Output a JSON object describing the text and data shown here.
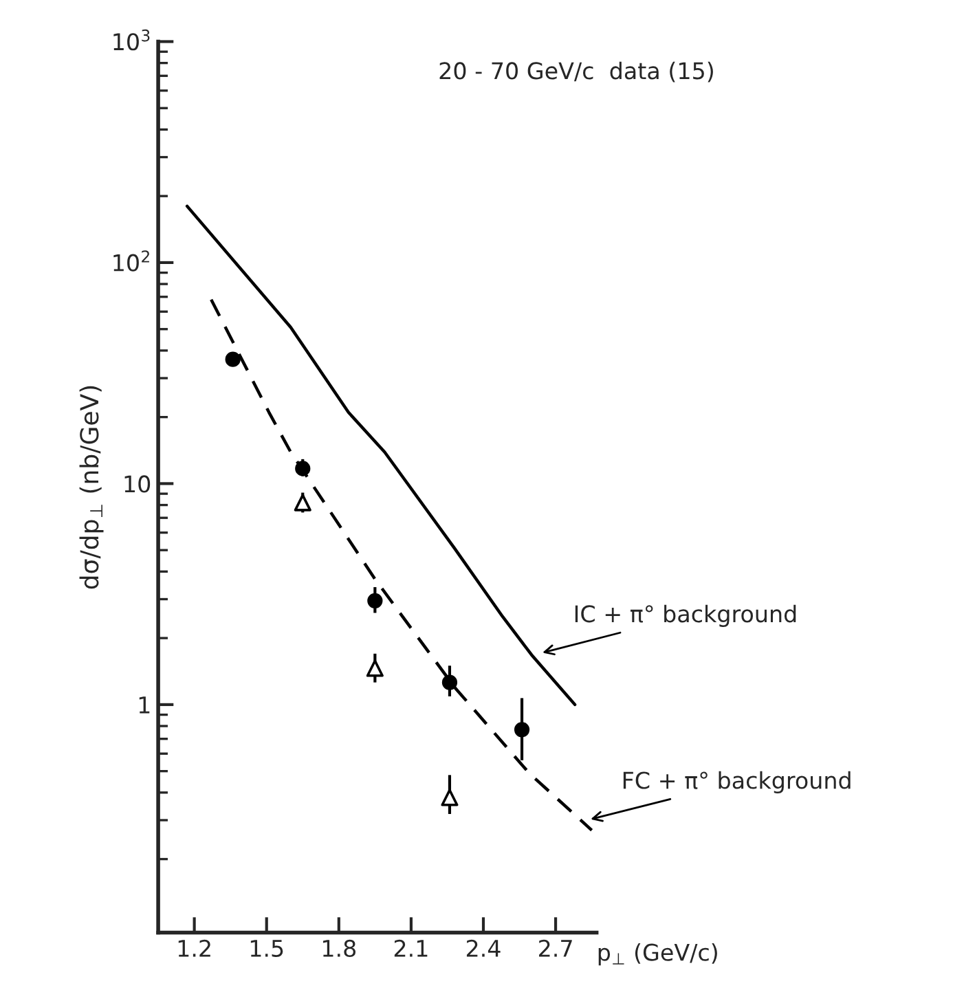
{
  "chart_data": {
    "type": "scatter",
    "ylabel": "dσ/dp$_{⊥}$ (nb/GeV)",
    "xlabel": "p$_{⊥}$ (GeV/c)",
    "log": "y",
    "xlim": [
      1.05,
      2.87
    ],
    "xticks": [
      1.2,
      1.5,
      1.8,
      2.1,
      2.4,
      2.7
    ],
    "ylim": [
      0.093,
      1000
    ],
    "yticks": [
      {
        "value": 1,
        "label": "1"
      },
      {
        "value": 10,
        "label": "10"
      },
      {
        "value": 100,
        "label": "10$^{2}$"
      },
      {
        "value": 1000,
        "label": "10$^{3}$"
      }
    ],
    "grid": false,
    "legend": false,
    "annotations": [
      "20 - 70 GeV/c  data (15)",
      {
        "text": "IC + π° background",
        "x": 2.63,
        "y": 1.7
      },
      {
        "text": "FC + π° background",
        "x": 2.83,
        "y": 0.3
      }
    ],
    "series": [
      {
        "type": "line",
        "line_style": "solid",
        "color": "#000000",
        "x": [
          1.17,
          1.6,
          1.84,
          1.99,
          2.28,
          2.48,
          2.6,
          2.78
        ],
        "values": [
          180,
          51,
          21,
          13.9,
          5.1,
          2.5,
          1.68,
          1.0
        ]
      },
      {
        "type": "line",
        "line_style": "dashed",
        "color": "#000000",
        "x": [
          1.27,
          1.51,
          1.6,
          1.95,
          2.28,
          2.59,
          2.85
        ],
        "values": [
          68,
          21,
          13.9,
          3.7,
          1.2,
          0.49,
          0.27
        ]
      },
      {
        "marker": "circle",
        "color": "#000000",
        "x": [
          1.36,
          1.65,
          1.95,
          2.26,
          2.56
        ],
        "values": [
          36.5,
          11.7,
          2.95,
          1.26,
          0.77
        ],
        "errors": [
          null,
          [
            10.8,
            12.9
          ],
          [
            2.6,
            3.4
          ],
          [
            1.09,
            1.5
          ],
          [
            0.56,
            1.07
          ]
        ]
      },
      {
        "marker": "triangle",
        "color": "#000000",
        "x": [
          1.65,
          1.95,
          2.26
        ],
        "values": [
          8.2,
          1.46,
          0.38
        ],
        "errors": [
          [
            7.4,
            9.1
          ],
          [
            1.26,
            1.7
          ],
          [
            0.32,
            0.48
          ]
        ]
      }
    ]
  }
}
